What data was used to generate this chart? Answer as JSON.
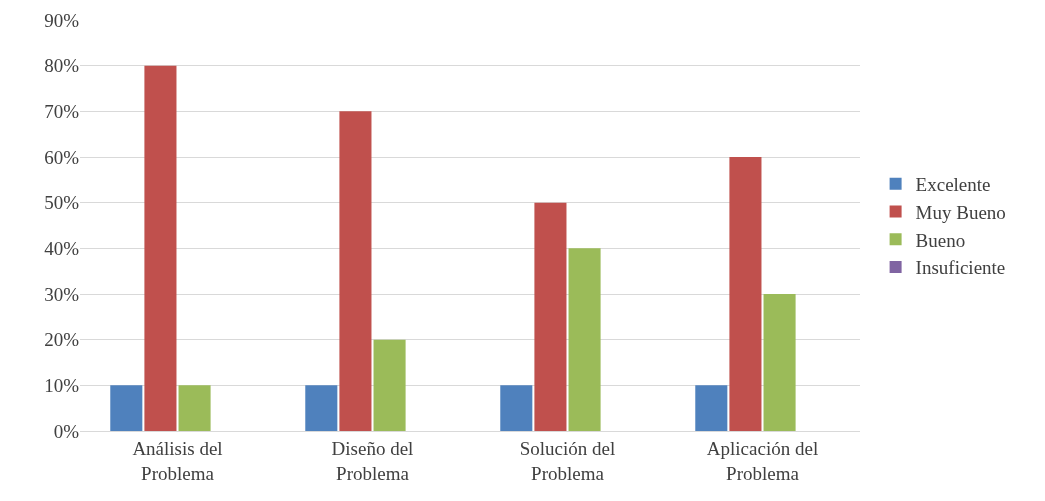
{
  "chart_data": {
    "type": "bar",
    "categories": [
      "Análisis del Problema",
      "Diseño del Problema",
      "Solución del Problema",
      "Aplicación del Problema"
    ],
    "series": [
      {
        "name": "Excelente",
        "color": "#4f81bd",
        "values": [
          10,
          10,
          10,
          10
        ]
      },
      {
        "name": "Muy Bueno",
        "color": "#c0504d",
        "values": [
          80,
          70,
          50,
          60
        ]
      },
      {
        "name": "Bueno",
        "color": "#9bbb59",
        "values": [
          10,
          20,
          40,
          30
        ]
      },
      {
        "name": "Insuficiente",
        "color": "#8064a2",
        "values": [
          0,
          0,
          0,
          0
        ]
      }
    ],
    "ylim": [
      0,
      90
    ],
    "yticks": [
      {
        "value": 0,
        "label": "0%"
      },
      {
        "value": 10,
        "label": "10%"
      },
      {
        "value": 20,
        "label": "20%"
      },
      {
        "value": 30,
        "label": "30%"
      },
      {
        "value": 40,
        "label": "40%"
      },
      {
        "value": 50,
        "label": "50%"
      },
      {
        "value": 60,
        "label": "60%"
      },
      {
        "value": 70,
        "label": "70%"
      },
      {
        "value": 80,
        "label": "80%"
      },
      {
        "value": 90,
        "label": "90%"
      }
    ],
    "grid": "y",
    "legend": "right"
  }
}
